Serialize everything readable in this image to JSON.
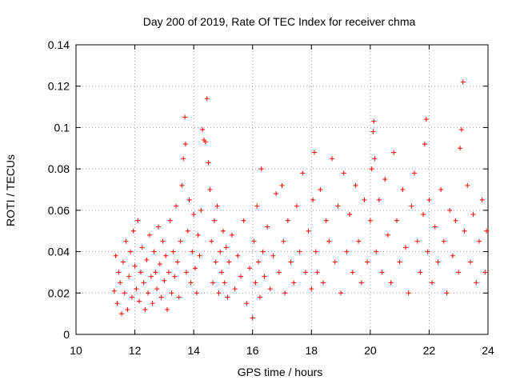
{
  "chart_data": {
    "type": "scatter",
    "title": "Day 200 of 2019, Rate Of TEC Index for receiver chma",
    "xlabel": "GPS time / hours",
    "ylabel": "ROTI / TECUs",
    "xlim": [
      10,
      24
    ],
    "ylim": [
      0,
      0.14
    ],
    "x_ticks": [
      10,
      12,
      14,
      16,
      18,
      20,
      22,
      24
    ],
    "x_tick_labels": [
      "10",
      "12",
      "14",
      "16",
      "18",
      "20",
      "22",
      "24"
    ],
    "y_ticks": [
      0,
      0.02,
      0.04,
      0.06,
      0.08,
      0.1,
      0.12,
      0.14
    ],
    "y_tick_labels": [
      "0",
      "0.02",
      "0.04",
      "0.06",
      "0.08",
      "0.1",
      "0.12",
      "0.14"
    ],
    "grid": true,
    "marker": "+",
    "color": "#ff0000",
    "series": [
      {
        "name": "ROTI",
        "points": [
          [
            11.3,
            0.021
          ],
          [
            11.35,
            0.038
          ],
          [
            11.4,
            0.015
          ],
          [
            11.45,
            0.03
          ],
          [
            11.5,
            0.025
          ],
          [
            11.55,
            0.01
          ],
          [
            11.6,
            0.035
          ],
          [
            11.65,
            0.02
          ],
          [
            11.7,
            0.045
          ],
          [
            11.75,
            0.012
          ],
          [
            11.8,
            0.028
          ],
          [
            11.85,
            0.04
          ],
          [
            11.9,
            0.018
          ],
          [
            11.95,
            0.05
          ],
          [
            12.0,
            0.033
          ],
          [
            12.05,
            0.022
          ],
          [
            12.1,
            0.055
          ],
          [
            12.15,
            0.016
          ],
          [
            12.2,
            0.03
          ],
          [
            12.25,
            0.042
          ],
          [
            12.3,
            0.025
          ],
          [
            12.35,
            0.012
          ],
          [
            12.4,
            0.036
          ],
          [
            12.45,
            0.02
          ],
          [
            12.5,
            0.048
          ],
          [
            12.55,
            0.028
          ],
          [
            12.6,
            0.015
          ],
          [
            12.65,
            0.04
          ],
          [
            12.7,
            0.03
          ],
          [
            12.75,
            0.022
          ],
          [
            12.8,
            0.052
          ],
          [
            12.85,
            0.034
          ],
          [
            12.9,
            0.018
          ],
          [
            12.95,
            0.045
          ],
          [
            13.0,
            0.026
          ],
          [
            13.05,
            0.038
          ],
          [
            13.1,
            0.012
          ],
          [
            13.15,
            0.03
          ],
          [
            13.2,
            0.055
          ],
          [
            13.25,
            0.02
          ],
          [
            13.3,
            0.04
          ],
          [
            13.35,
            0.028
          ],
          [
            13.4,
            0.062
          ],
          [
            13.45,
            0.035
          ],
          [
            13.5,
            0.018
          ],
          [
            13.55,
            0.045
          ],
          [
            13.6,
            0.072
          ],
          [
            13.65,
            0.085
          ],
          [
            13.7,
            0.105
          ],
          [
            13.72,
            0.092
          ],
          [
            13.75,
            0.03
          ],
          [
            13.8,
            0.05
          ],
          [
            13.85,
            0.065
          ],
          [
            13.9,
            0.025
          ],
          [
            13.95,
            0.04
          ],
          [
            14.0,
            0.058
          ],
          [
            14.05,
            0.032
          ],
          [
            14.1,
            0.02
          ],
          [
            14.15,
            0.048
          ],
          [
            14.2,
            0.038
          ],
          [
            14.25,
            0.06
          ],
          [
            14.3,
            0.099
          ],
          [
            14.35,
            0.094
          ],
          [
            14.4,
            0.093
          ],
          [
            14.45,
            0.114
          ],
          [
            14.5,
            0.083
          ],
          [
            14.55,
            0.07
          ],
          [
            14.6,
            0.045
          ],
          [
            14.65,
            0.025
          ],
          [
            14.7,
            0.055
          ],
          [
            14.75,
            0.035
          ],
          [
            14.8,
            0.062
          ],
          [
            14.85,
            0.02
          ],
          [
            14.9,
            0.04
          ],
          [
            14.95,
            0.03
          ],
          [
            15.0,
            0.05
          ],
          [
            15.05,
            0.025
          ],
          [
            15.1,
            0.042
          ],
          [
            15.15,
            0.018
          ],
          [
            15.2,
            0.035
          ],
          [
            15.3,
            0.048
          ],
          [
            15.4,
            0.022
          ],
          [
            15.5,
            0.038
          ],
          [
            15.6,
            0.028
          ],
          [
            15.7,
            0.055
          ],
          [
            15.8,
            0.015
          ],
          [
            15.9,
            0.032
          ],
          [
            16.0,
            0.008
          ],
          [
            16.05,
            0.045
          ],
          [
            16.1,
            0.025
          ],
          [
            16.15,
            0.062
          ],
          [
            16.2,
            0.035
          ],
          [
            16.25,
            0.018
          ],
          [
            16.3,
            0.08
          ],
          [
            16.35,
            0.04
          ],
          [
            16.4,
            0.028
          ],
          [
            16.5,
            0.052
          ],
          [
            16.6,
            0.022
          ],
          [
            16.7,
            0.038
          ],
          [
            16.8,
            0.068
          ],
          [
            16.9,
            0.03
          ],
          [
            17.0,
            0.072
          ],
          [
            17.05,
            0.045
          ],
          [
            17.1,
            0.02
          ],
          [
            17.2,
            0.055
          ],
          [
            17.3,
            0.035
          ],
          [
            17.4,
            0.025
          ],
          [
            17.5,
            0.062
          ],
          [
            17.6,
            0.04
          ],
          [
            17.7,
            0.078
          ],
          [
            17.8,
            0.03
          ],
          [
            17.9,
            0.05
          ],
          [
            18.0,
            0.022
          ],
          [
            18.05,
            0.065
          ],
          [
            18.1,
            0.088
          ],
          [
            18.15,
            0.04
          ],
          [
            18.2,
            0.03
          ],
          [
            18.3,
            0.07
          ],
          [
            18.4,
            0.025
          ],
          [
            18.5,
            0.055
          ],
          [
            18.6,
            0.045
          ],
          [
            18.7,
            0.085
          ],
          [
            18.8,
            0.035
          ],
          [
            18.9,
            0.062
          ],
          [
            19.0,
            0.02
          ],
          [
            19.1,
            0.078
          ],
          [
            19.2,
            0.04
          ],
          [
            19.3,
            0.058
          ],
          [
            19.4,
            0.03
          ],
          [
            19.5,
            0.072
          ],
          [
            19.6,
            0.045
          ],
          [
            19.7,
            0.025
          ],
          [
            19.8,
            0.065
          ],
          [
            19.9,
            0.035
          ],
          [
            20.0,
            0.055
          ],
          [
            20.05,
            0.08
          ],
          [
            20.1,
            0.098
          ],
          [
            20.12,
            0.103
          ],
          [
            20.15,
            0.085
          ],
          [
            20.2,
            0.04
          ],
          [
            20.3,
            0.065
          ],
          [
            20.4,
            0.03
          ],
          [
            20.5,
            0.075
          ],
          [
            20.6,
            0.048
          ],
          [
            20.7,
            0.025
          ],
          [
            20.8,
            0.088
          ],
          [
            20.9,
            0.055
          ],
          [
            21.0,
            0.035
          ],
          [
            21.1,
            0.07
          ],
          [
            21.2,
            0.042
          ],
          [
            21.3,
            0.02
          ],
          [
            21.4,
            0.062
          ],
          [
            21.5,
            0.078
          ],
          [
            21.6,
            0.045
          ],
          [
            21.7,
            0.03
          ],
          [
            21.8,
            0.058
          ],
          [
            21.85,
            0.092
          ],
          [
            21.9,
            0.104
          ],
          [
            21.95,
            0.04
          ],
          [
            22.0,
            0.065
          ],
          [
            22.1,
            0.025
          ],
          [
            22.2,
            0.052
          ],
          [
            22.3,
            0.035
          ],
          [
            22.4,
            0.07
          ],
          [
            22.5,
            0.045
          ],
          [
            22.6,
            0.02
          ],
          [
            22.7,
            0.06
          ],
          [
            22.8,
            0.038
          ],
          [
            22.9,
            0.055
          ],
          [
            23.0,
            0.03
          ],
          [
            23.05,
            0.09
          ],
          [
            23.1,
            0.099
          ],
          [
            23.15,
            0.122
          ],
          [
            23.2,
            0.05
          ],
          [
            23.3,
            0.072
          ],
          [
            23.4,
            0.035
          ],
          [
            23.5,
            0.058
          ],
          [
            23.6,
            0.025
          ],
          [
            23.7,
            0.045
          ],
          [
            23.8,
            0.065
          ],
          [
            23.9,
            0.03
          ],
          [
            23.95,
            0.05
          ]
        ]
      }
    ]
  }
}
